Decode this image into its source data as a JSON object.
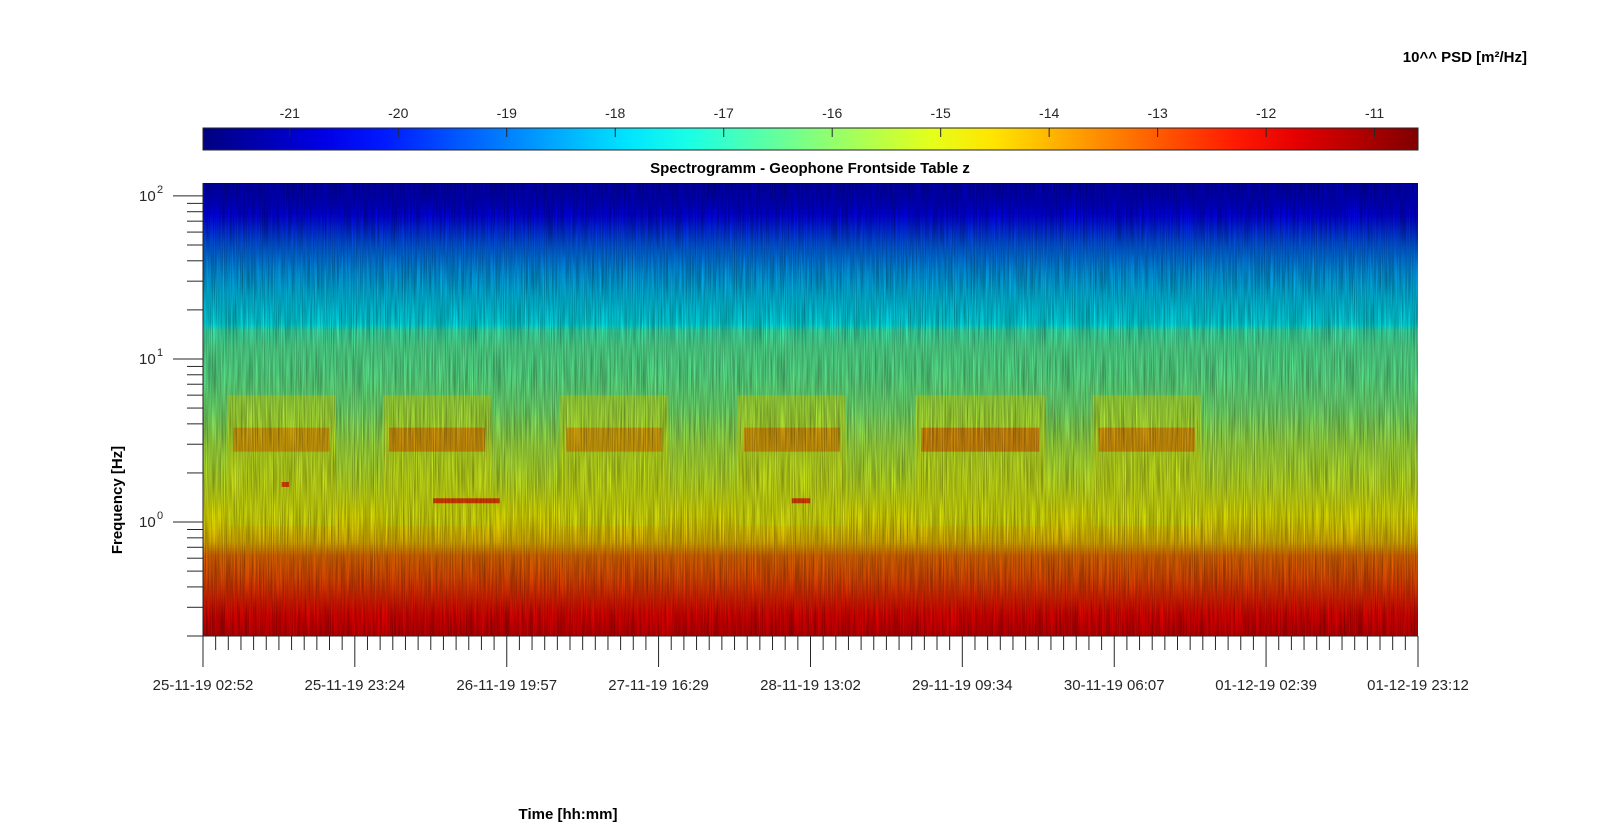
{
  "chart_data": {
    "type": "heatmap",
    "title": "Spectrogramm - Geophone Frontside Table z",
    "xlabel": "Time [hh:mm]",
    "ylabel": "Frequency [Hz]",
    "colorbar_label": "10^^ PSD [m²/Hz]",
    "colormap": "jet",
    "clim": [
      -21.8,
      -10.6
    ],
    "colorbar_ticks": [
      -21,
      -20,
      -19,
      -18,
      -17,
      -16,
      -15,
      -14,
      -13,
      -12,
      -11
    ],
    "colorbar_tick_labels": [
      "-21",
      "-20",
      "-19",
      "-18",
      "-17",
      "-16",
      "-15",
      "-14",
      "-13",
      "-12",
      "-11"
    ],
    "x_tick_labels": [
      "25-11-19 02:52",
      "25-11-19 23:24",
      "26-11-19 19:57",
      "27-11-19 16:29",
      "28-11-19 13:02",
      "29-11-19 09:34",
      "30-11-19 06:07",
      "01-12-19 02:39",
      "01-12-19 23:12"
    ],
    "xlim": [
      "25-11-19 02:52",
      "01-12-19 23:12"
    ],
    "y_scale": "log",
    "ylim": [
      0.2,
      120
    ],
    "y_ticks": [
      {
        "value": 1,
        "base": "10",
        "exp": "0"
      },
      {
        "value": 10,
        "base": "10",
        "exp": "1"
      },
      {
        "value": 100,
        "base": "10",
        "exp": "2"
      }
    ],
    "psd_profile_by_frequency": [
      {
        "f": 0.2,
        "log10_psd": -11.6
      },
      {
        "f": 0.3,
        "log10_psd": -12.2
      },
      {
        "f": 0.45,
        "log10_psd": -12.9
      },
      {
        "f": 0.62,
        "log10_psd": -13.3
      },
      {
        "f": 0.75,
        "log10_psd": -14.2
      },
      {
        "f": 1.0,
        "log10_psd": -14.7
      },
      {
        "f": 1.5,
        "log10_psd": -15.1
      },
      {
        "f": 2.2,
        "log10_psd": -15.4
      },
      {
        "f": 3.0,
        "log10_psd": -15.6
      },
      {
        "f": 5.0,
        "log10_psd": -16.2
      },
      {
        "f": 8.0,
        "log10_psd": -16.5
      },
      {
        "f": 12.0,
        "log10_psd": -16.6
      },
      {
        "f": 15.0,
        "log10_psd": -16.9
      },
      {
        "f": 16.5,
        "log10_psd": -17.7
      },
      {
        "f": 25.0,
        "log10_psd": -18.1
      },
      {
        "f": 35.0,
        "log10_psd": -18.6
      },
      {
        "f": 50.0,
        "log10_psd": -19.3
      },
      {
        "f": 70.0,
        "log10_psd": -20.2
      },
      {
        "f": 90.0,
        "log10_psd": -20.7
      },
      {
        "f": 120.0,
        "log10_psd": -21.0
      }
    ],
    "activity_periods": [
      {
        "start": "25-11-19 07:00",
        "end": "25-11-19 20:00",
        "peak_f": 3.2,
        "log10_psd": -13.7
      },
      {
        "start": "26-11-19 04:00",
        "end": "26-11-19 17:00",
        "peak_f": 3.2,
        "log10_psd": -13.5
      },
      {
        "start": "27-11-19 04:00",
        "end": "27-11-19 17:00",
        "peak_f": 3.2,
        "log10_psd": -13.7
      },
      {
        "start": "28-11-19 04:00",
        "end": "28-11-19 17:00",
        "peak_f": 3.2,
        "log10_psd": -13.6
      },
      {
        "start": "29-11-19 04:00",
        "end": "29-11-19 20:00",
        "peak_f": 3.2,
        "log10_psd": -13.3
      },
      {
        "start": "30-11-19 04:00",
        "end": "30-11-19 17:00",
        "peak_f": 3.2,
        "log10_psd": -13.5
      }
    ],
    "tonal_lines": [
      {
        "start": "26-11-19 10:00",
        "end": "26-11-19 19:00",
        "f": 1.35,
        "log10_psd": -12.8
      },
      {
        "start": "28-11-19 10:30",
        "end": "28-11-19 13:00",
        "f": 1.35,
        "log10_psd": -12.8
      },
      {
        "start": "25-11-19 13:30",
        "end": "25-11-19 14:30",
        "f": 1.7,
        "log10_psd": -12.9
      }
    ]
  }
}
